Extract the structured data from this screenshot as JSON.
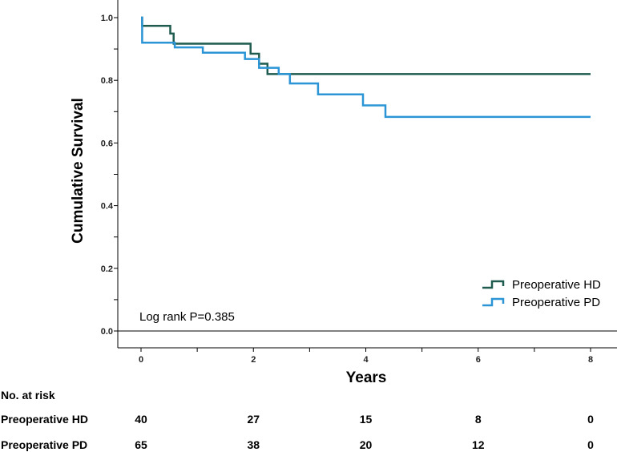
{
  "chart_data": {
    "type": "line",
    "subtype": "kaplan-meier",
    "xlabel": "Years",
    "ylabel": "Cumulative Survival",
    "xlim": [
      0,
      8
    ],
    "ylim": [
      0.0,
      1.0
    ],
    "x_ticks": [
      "0",
      "2",
      "4",
      "6",
      "8"
    ],
    "y_ticks": [
      "0.0",
      "0.2",
      "0.4",
      "0.6",
      "0.8",
      "1.0"
    ],
    "annotation": "Log rank P=0.385",
    "legend_position": "bottom-right",
    "series": [
      {
        "name": "Preoperative HD",
        "color": "#1f5c4f",
        "x": [
          0,
          0.02,
          0.02,
          0.52,
          0.52,
          0.58,
          0.58,
          1.95,
          1.95,
          2.1,
          2.1,
          2.25,
          2.25,
          2.7,
          8
        ],
        "y": [
          1.0,
          1.0,
          0.974,
          0.974,
          0.949,
          0.949,
          0.917,
          0.917,
          0.885,
          0.885,
          0.853,
          0.853,
          0.82,
          0.82,
          0.82
        ]
      },
      {
        "name": "Preoperative PD",
        "color": "#2b95d6",
        "x": [
          0,
          0.02,
          0.02,
          0.6,
          0.6,
          1.1,
          1.1,
          1.85,
          1.85,
          2.1,
          2.1,
          2.45,
          2.45,
          2.65,
          2.65,
          3.15,
          3.15,
          3.95,
          3.95,
          4.35,
          4.35,
          8
        ],
        "y": [
          1.0,
          1.0,
          0.92,
          0.92,
          0.905,
          0.905,
          0.888,
          0.888,
          0.868,
          0.868,
          0.84,
          0.84,
          0.82,
          0.82,
          0.79,
          0.79,
          0.755,
          0.755,
          0.72,
          0.72,
          0.683,
          0.683
        ]
      }
    ],
    "risk_table": {
      "title": "No. at risk",
      "times": [
        0,
        2,
        4,
        6,
        8
      ],
      "rows": [
        {
          "label": "Preoperative HD",
          "values": [
            "40",
            "27",
            "15",
            "8",
            "0"
          ]
        },
        {
          "label": "Preoperative PD",
          "values": [
            "65",
            "38",
            "20",
            "12",
            "0"
          ]
        }
      ]
    }
  }
}
